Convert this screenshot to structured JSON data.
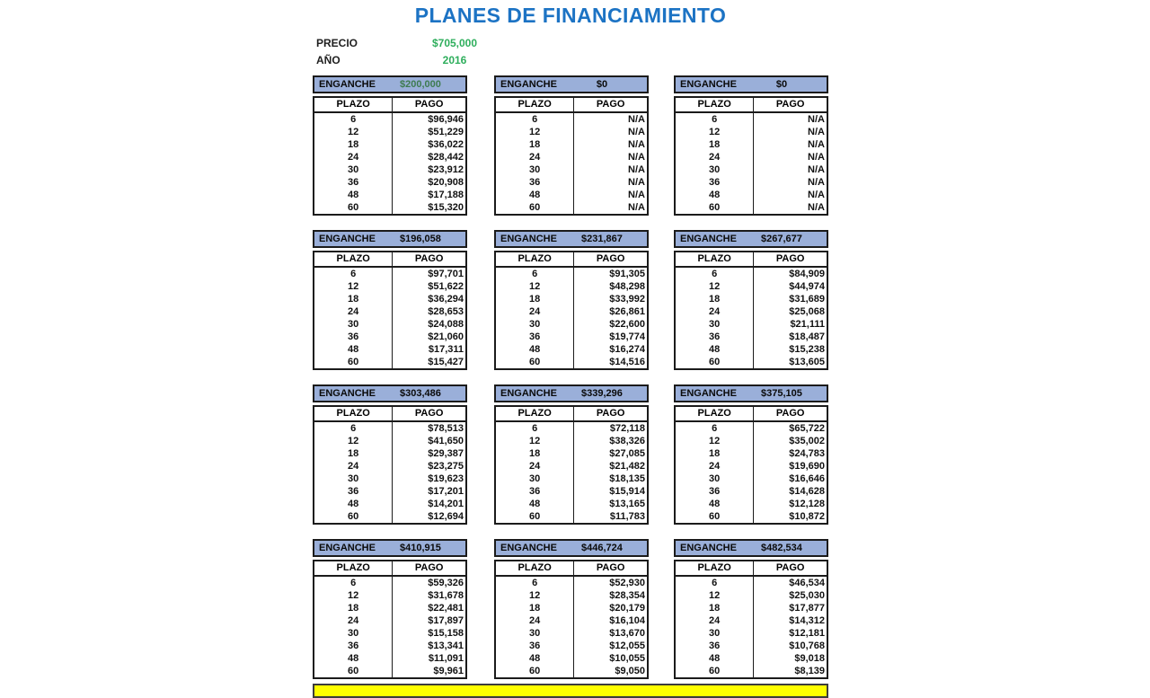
{
  "title": "PLANES DE FINANCIAMIENTO",
  "info": {
    "precio_label": "PRECIO",
    "precio_value": "$705,000",
    "ano_label": "AÑO",
    "ano_value": "2016"
  },
  "labels": {
    "enganche": "ENGANCHE",
    "plazo": "PLAZO",
    "pago": "PAGO"
  },
  "plazos": [
    "6",
    "12",
    "18",
    "24",
    "30",
    "36",
    "48",
    "60"
  ],
  "plans": [
    {
      "enganche": "$200,000",
      "value_style": "green",
      "pagos": [
        "$96,946",
        "$51,229",
        "$36,022",
        "$28,442",
        "$23,912",
        "$20,908",
        "$17,188",
        "$15,320"
      ]
    },
    {
      "enganche": "$0",
      "value_style": "black",
      "pagos": [
        "N/A",
        "N/A",
        "N/A",
        "N/A",
        "N/A",
        "N/A",
        "N/A",
        "N/A"
      ]
    },
    {
      "enganche": "$0",
      "value_style": "black",
      "pagos": [
        "N/A",
        "N/A",
        "N/A",
        "N/A",
        "N/A",
        "N/A",
        "N/A",
        "N/A"
      ]
    },
    {
      "enganche": "$196,058",
      "value_style": "black",
      "pagos": [
        "$97,701",
        "$51,622",
        "$36,294",
        "$28,653",
        "$24,088",
        "$21,060",
        "$17,311",
        "$15,427"
      ]
    },
    {
      "enganche": "$231,867",
      "value_style": "black",
      "pagos": [
        "$91,305",
        "$48,298",
        "$33,992",
        "$26,861",
        "$22,600",
        "$19,774",
        "$16,274",
        "$14,516"
      ]
    },
    {
      "enganche": "$267,677",
      "value_style": "black",
      "pagos": [
        "$84,909",
        "$44,974",
        "$31,689",
        "$25,068",
        "$21,111",
        "$18,487",
        "$15,238",
        "$13,605"
      ]
    },
    {
      "enganche": "$303,486",
      "value_style": "black",
      "pagos": [
        "$78,513",
        "$41,650",
        "$29,387",
        "$23,275",
        "$19,623",
        "$17,201",
        "$14,201",
        "$12,694"
      ]
    },
    {
      "enganche": "$339,296",
      "value_style": "black",
      "pagos": [
        "$72,118",
        "$38,326",
        "$27,085",
        "$21,482",
        "$18,135",
        "$15,914",
        "$13,165",
        "$11,783"
      ]
    },
    {
      "enganche": "$375,105",
      "value_style": "black",
      "pagos": [
        "$65,722",
        "$35,002",
        "$24,783",
        "$19,690",
        "$16,646",
        "$14,628",
        "$12,128",
        "$10,872"
      ]
    },
    {
      "enganche": "$410,915",
      "value_style": "black",
      "pagos": [
        "$59,326",
        "$31,678",
        "$22,481",
        "$17,897",
        "$15,158",
        "$13,341",
        "$11,091",
        "$9,961"
      ]
    },
    {
      "enganche": "$446,724",
      "value_style": "black",
      "pagos": [
        "$52,930",
        "$28,354",
        "$20,179",
        "$16,104",
        "$13,670",
        "$12,055",
        "$10,055",
        "$9,050"
      ]
    },
    {
      "enganche": "$482,534",
      "value_style": "black",
      "pagos": [
        "$46,534",
        "$25,030",
        "$17,877",
        "$14,312",
        "$12,181",
        "$10,768",
        "$9,018",
        "$8,139"
      ]
    }
  ],
  "colors": {
    "title_blue": "#1C73C4",
    "green": "#2EAE5C",
    "bar_bg": "#9AAFD9",
    "enganche_green": "#3E7B50",
    "yellow": "#FFFF00"
  }
}
